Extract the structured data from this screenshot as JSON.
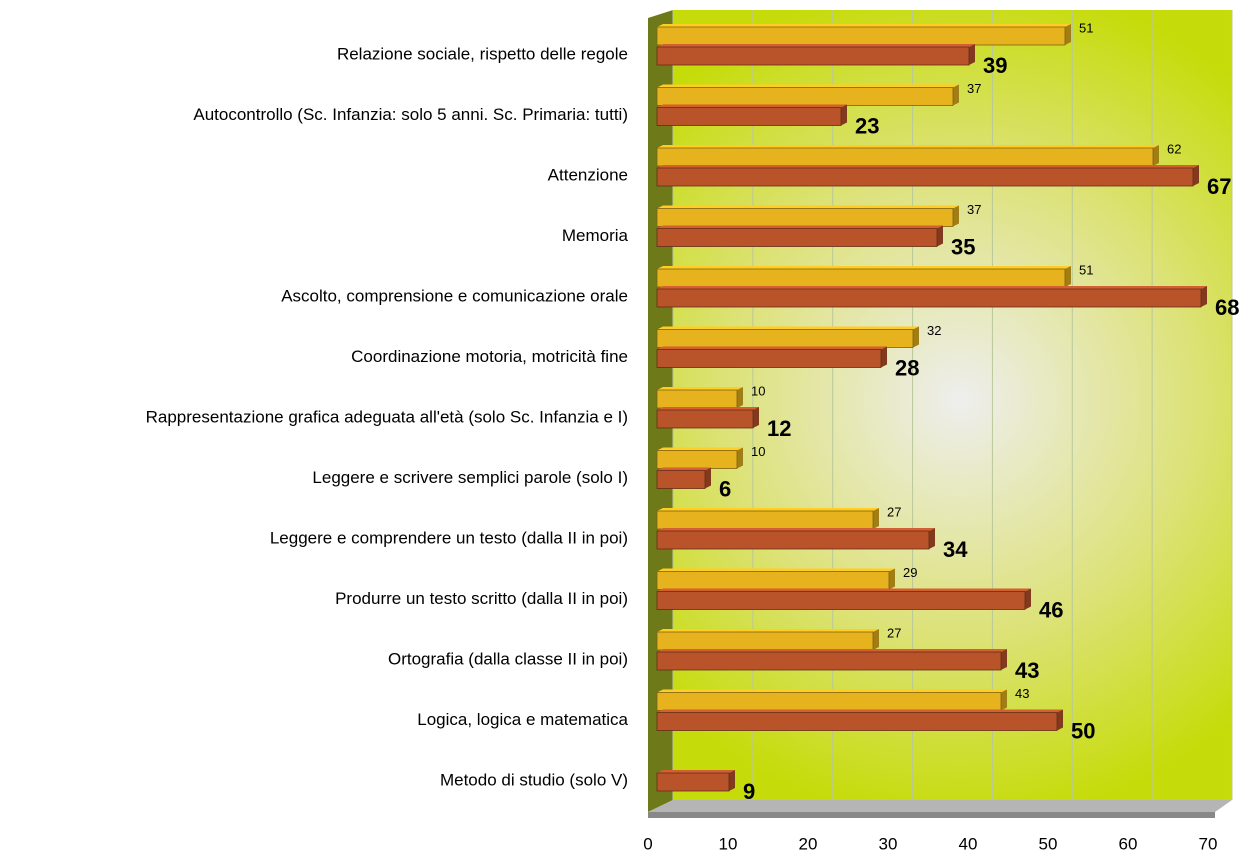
{
  "chart_data": {
    "type": "bar",
    "orientation": "horizontal",
    "categories": [
      "Relazione sociale, rispetto delle regole",
      "Autocontrollo (Sc. Infanzia: solo 5 anni. Sc. Primaria: tutti)",
      "Attenzione",
      "Memoria",
      "Ascolto, comprensione e comunicazione orale",
      "Coordinazione motoria, motricità fine",
      "Rappresentazione grafica adeguata all'età (solo Sc. Infanzia e I)",
      "Leggere e scrivere semplici parole (solo I)",
      "Leggere e comprendere un testo (dalla II in poi)",
      "Produrre un testo scritto (dalla II in poi)",
      "Ortografia (dalla classe II in poi)",
      "Logica, logica e matematica",
      "Metodo di studio (solo V)"
    ],
    "series": [
      {
        "color": "#e6b21e",
        "values": [
          51,
          37,
          62,
          37,
          51,
          32,
          10,
          10,
          27,
          29,
          27,
          43,
          null
        ]
      },
      {
        "color": "#b8532a",
        "values": [
          39,
          23,
          67,
          35,
          68,
          28,
          12,
          6,
          34,
          46,
          43,
          50,
          9
        ]
      }
    ],
    "xlim": [
      0,
      70
    ],
    "xticks": [
      0,
      10,
      20,
      30,
      40,
      50,
      60,
      70
    ],
    "grid": true
  }
}
